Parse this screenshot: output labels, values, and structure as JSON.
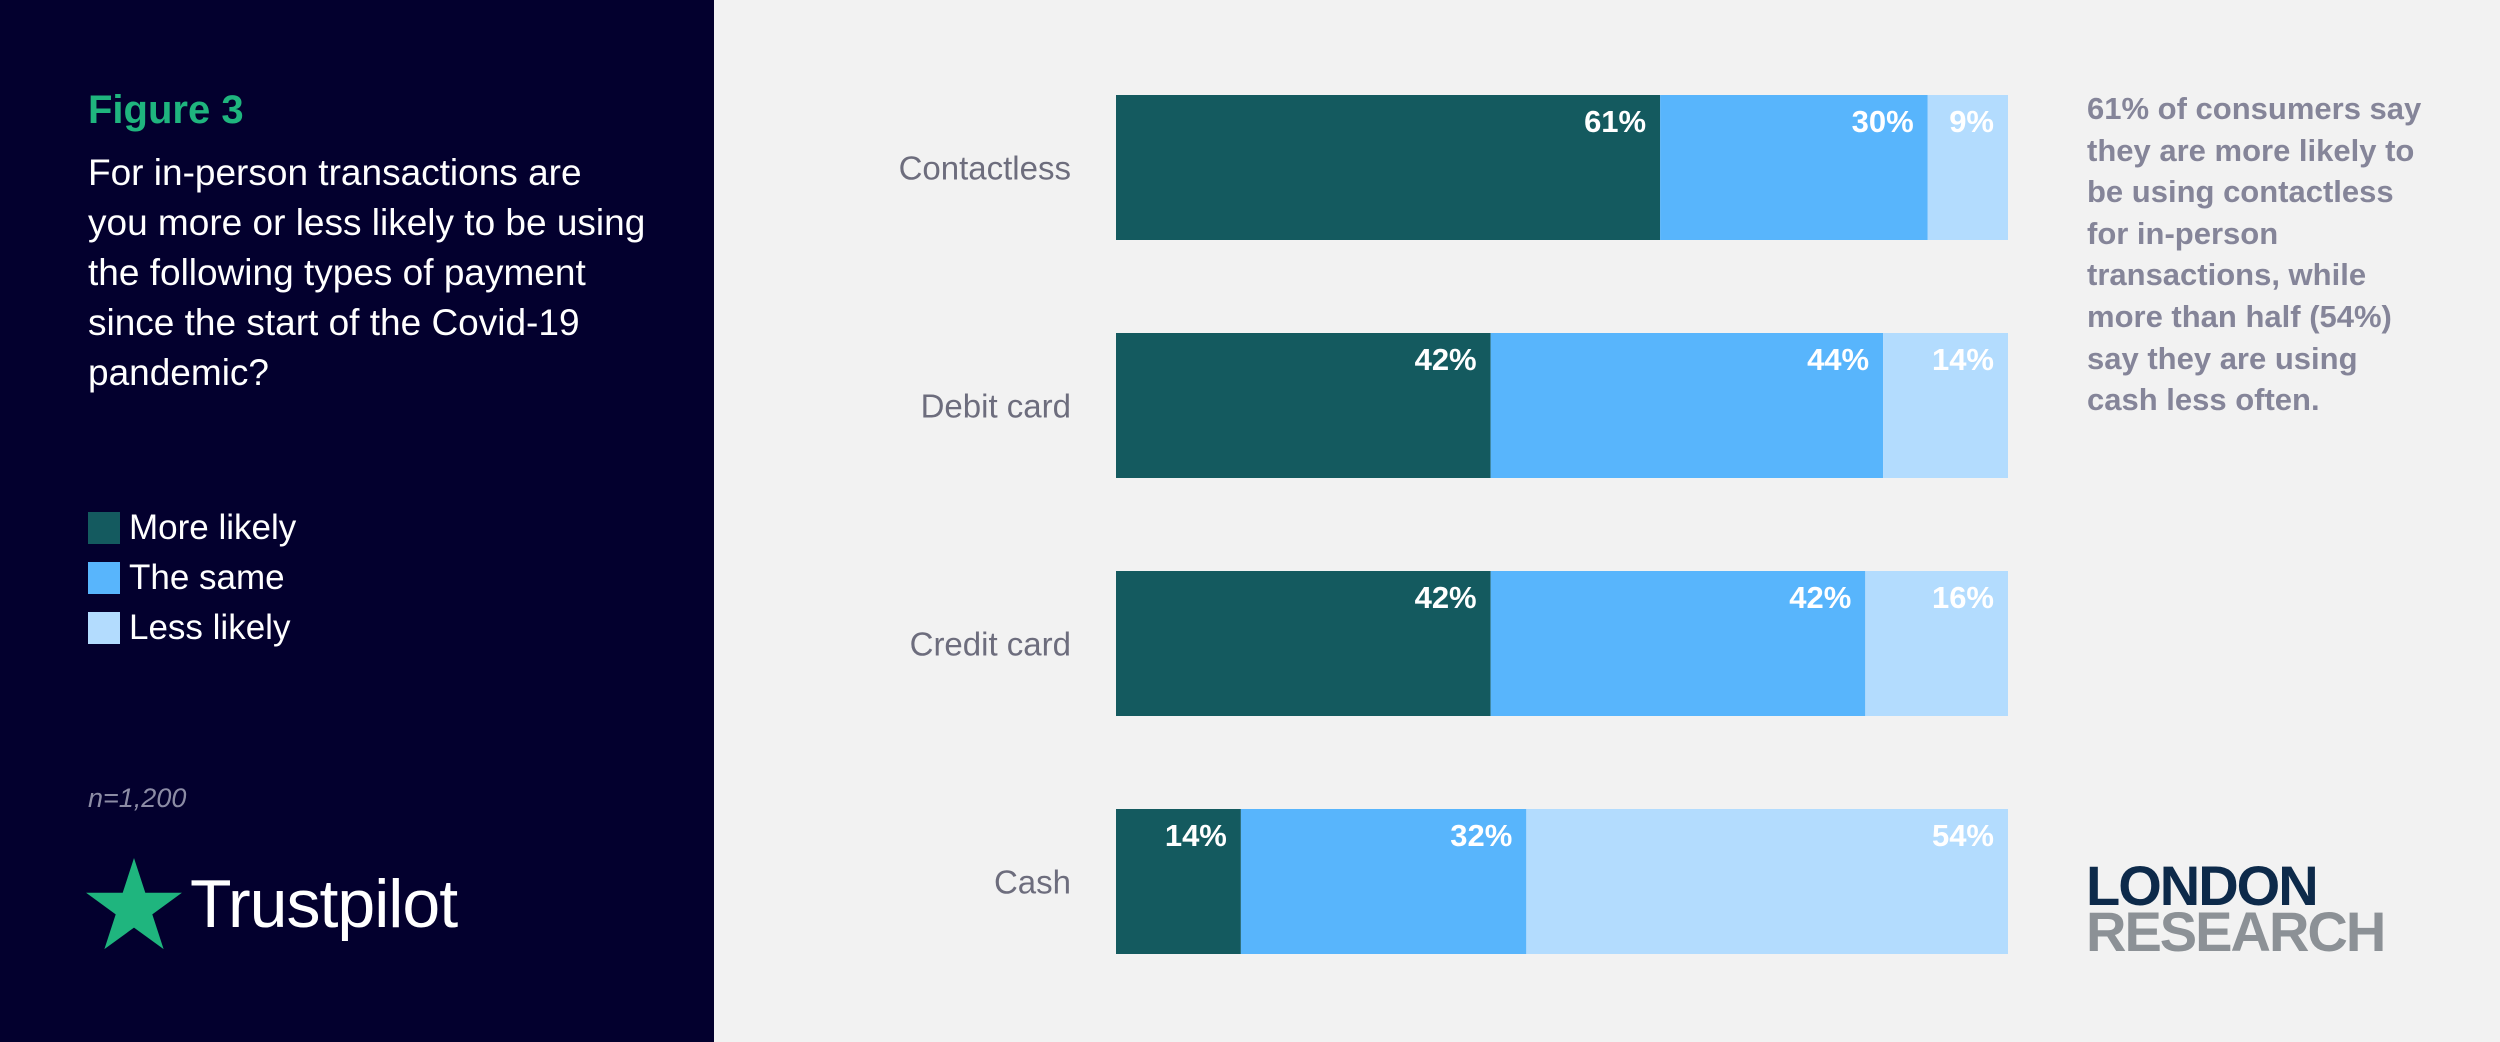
{
  "figure_label": "Figure 3",
  "figure_title": "For in-person transactions are you more or less likely to be using the following types of payment since the start of the Covid-19 pandemic?",
  "sample_note": "n=1,200",
  "brand": {
    "name": "Trustpilot",
    "icon": "star-icon"
  },
  "logo": {
    "line1": "LONDON",
    "line2": "RESEARCH"
  },
  "callout": "61% of consumers say they are more likely to be using contactless for in-person transactions, while more than half (54%) say they are using cash less often.",
  "colors": {
    "more": "#145a5f",
    "same": "#58b5fc",
    "less": "#b3dcfe",
    "panel": "#03002e",
    "accent": "#1fb57e"
  },
  "chart_data": {
    "type": "bar",
    "orientation": "horizontal",
    "stacked": true,
    "categories": [
      "Contactless",
      "Debit card",
      "Credit card",
      "Cash"
    ],
    "series": [
      {
        "name": "More likely",
        "color": "#145a5f",
        "values": [
          61,
          42,
          42,
          14
        ]
      },
      {
        "name": "The same",
        "color": "#58b5fc",
        "values": [
          30,
          44,
          42,
          32
        ]
      },
      {
        "name": "Less likely",
        "color": "#b3dcfe",
        "values": [
          9,
          14,
          16,
          54
        ]
      }
    ],
    "value_suffix": "%",
    "xlim": [
      0,
      100
    ],
    "grid": false,
    "legend_position": "left"
  }
}
